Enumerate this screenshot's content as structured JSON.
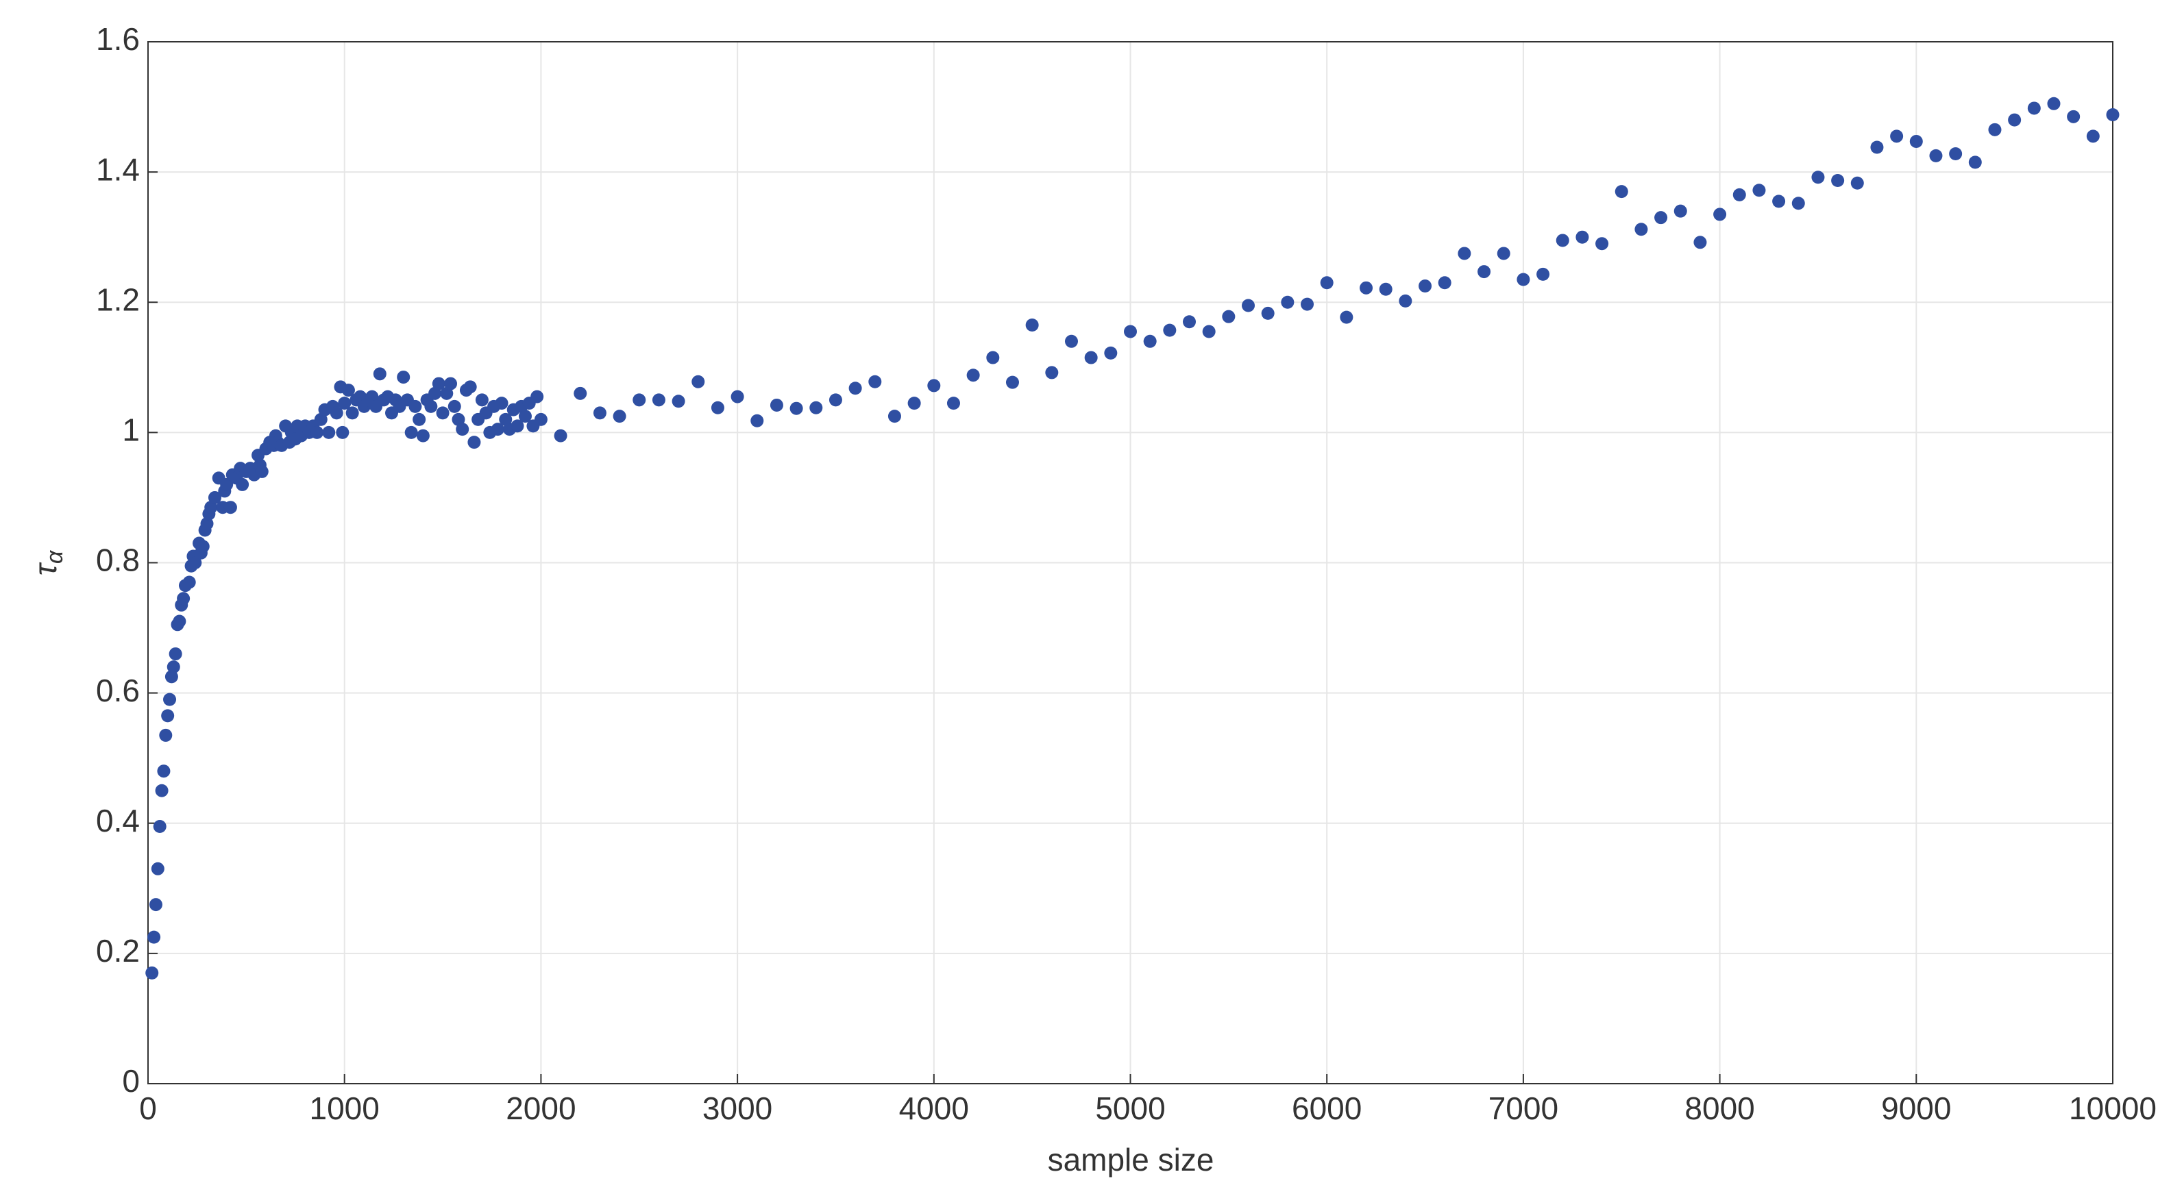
{
  "chart_data": {
    "type": "scatter",
    "x_label": "sample size",
    "y_label": "τ",
    "y_label_subscript": "α",
    "color": "#2f4fa2",
    "grid": true,
    "xlim": [
      0,
      10000
    ],
    "ylim": [
      0,
      1.6
    ],
    "xticks": [
      0,
      1000,
      2000,
      3000,
      4000,
      5000,
      6000,
      7000,
      8000,
      9000,
      10000
    ],
    "yticks": [
      0,
      0.2,
      0.4,
      0.6,
      0.8,
      1,
      1.2,
      1.4,
      1.6
    ],
    "x": [
      20,
      30,
      40,
      50,
      60,
      70,
      80,
      90,
      100,
      110,
      120,
      130,
      140,
      150,
      160,
      170,
      180,
      190,
      210,
      220,
      230,
      240,
      260,
      270,
      280,
      290,
      300,
      310,
      320,
      340,
      360,
      380,
      390,
      400,
      420,
      430,
      450,
      470,
      480,
      500,
      520,
      540,
      560,
      570,
      580,
      600,
      620,
      640,
      650,
      660,
      680,
      700,
      720,
      730,
      750,
      760,
      780,
      800,
      820,
      840,
      860,
      880,
      900,
      920,
      940,
      960,
      980,
      990,
      1000,
      1020,
      1040,
      1060,
      1080,
      1100,
      1120,
      1140,
      1160,
      1180,
      1200,
      1220,
      1240,
      1260,
      1280,
      1300,
      1320,
      1340,
      1360,
      1380,
      1400,
      1420,
      1440,
      1460,
      1480,
      1500,
      1520,
      1540,
      1560,
      1580,
      1600,
      1620,
      1640,
      1660,
      1680,
      1700,
      1720,
      1740,
      1760,
      1780,
      1800,
      1820,
      1840,
      1860,
      1880,
      1900,
      1920,
      1940,
      1960,
      1980,
      2000,
      2100,
      2200,
      2300,
      2400,
      2500,
      2600,
      2700,
      2800,
      2900,
      3000,
      3100,
      3200,
      3300,
      3400,
      3500,
      3600,
      3700,
      3800,
      3900,
      4000,
      4100,
      4200,
      4300,
      4400,
      4500,
      4600,
      4700,
      4800,
      4900,
      5000,
      5100,
      5200,
      5300,
      5400,
      5500,
      5600,
      5700,
      5800,
      5900,
      6000,
      6100,
      6200,
      6300,
      6400,
      6500,
      6600,
      6700,
      6800,
      6900,
      7000,
      7100,
      7200,
      7300,
      7400,
      7500,
      7600,
      7700,
      7800,
      7900,
      8000,
      8100,
      8200,
      8300,
      8400,
      8500,
      8600,
      8700,
      8800,
      8900,
      9000,
      9100,
      9200,
      9300,
      9400,
      9500,
      9600,
      9700,
      9800,
      9900,
      10000
    ],
    "values": [
      0.17,
      0.225,
      0.275,
      0.33,
      0.395,
      0.45,
      0.48,
      0.535,
      0.565,
      0.59,
      0.625,
      0.64,
      0.66,
      0.705,
      0.71,
      0.735,
      0.745,
      0.765,
      0.77,
      0.795,
      0.81,
      0.8,
      0.83,
      0.815,
      0.825,
      0.85,
      0.86,
      0.875,
      0.885,
      0.9,
      0.93,
      0.885,
      0.91,
      0.92,
      0.885,
      0.935,
      0.93,
      0.945,
      0.92,
      0.94,
      0.945,
      0.935,
      0.965,
      0.95,
      0.94,
      0.975,
      0.985,
      0.98,
      0.995,
      0.985,
      0.98,
      1.01,
      0.985,
      1.0,
      0.99,
      1.01,
      0.995,
      1.01,
      1.0,
      1.01,
      1.0,
      1.02,
      1.035,
      1.0,
      1.04,
      1.03,
      1.07,
      1.0,
      1.045,
      1.065,
      1.03,
      1.05,
      1.055,
      1.04,
      1.05,
      1.055,
      1.04,
      1.09,
      1.05,
      1.055,
      1.03,
      1.05,
      1.04,
      1.085,
      1.05,
      1.0,
      1.04,
      1.02,
      0.995,
      1.05,
      1.04,
      1.06,
      1.075,
      1.03,
      1.06,
      1.075,
      1.04,
      1.02,
      1.005,
      1.065,
      1.07,
      0.985,
      1.02,
      1.05,
      1.03,
      1.0,
      1.04,
      1.005,
      1.045,
      1.02,
      1.005,
      1.035,
      1.01,
      1.04,
      1.025,
      1.045,
      1.01,
      1.055,
      1.02,
      0.995,
      1.06,
      1.03,
      1.025,
      1.05,
      1.05,
      1.048,
      1.078,
      1.038,
      1.055,
      1.018,
      1.042,
      1.037,
      1.038,
      1.05,
      1.068,
      1.078,
      1.025,
      1.045,
      1.072,
      1.045,
      1.088,
      1.115,
      1.077,
      1.165,
      1.092,
      1.14,
      1.115,
      1.122,
      1.155,
      1.14,
      1.157,
      1.17,
      1.155,
      1.178,
      1.195,
      1.183,
      1.2,
      1.197,
      1.23,
      1.177,
      1.222,
      1.22,
      1.202,
      1.225,
      1.23,
      1.275,
      1.247,
      1.275,
      1.235,
      1.243,
      1.295,
      1.3,
      1.29,
      1.37,
      1.312,
      1.33,
      1.34,
      1.292,
      1.335,
      1.365,
      1.372,
      1.355,
      1.352,
      1.392,
      1.387,
      1.383,
      1.438,
      1.455,
      1.447,
      1.425,
      1.428,
      1.415,
      1.465,
      1.48,
      1.498,
      1.505,
      1.485,
      1.455,
      1.488
    ]
  }
}
